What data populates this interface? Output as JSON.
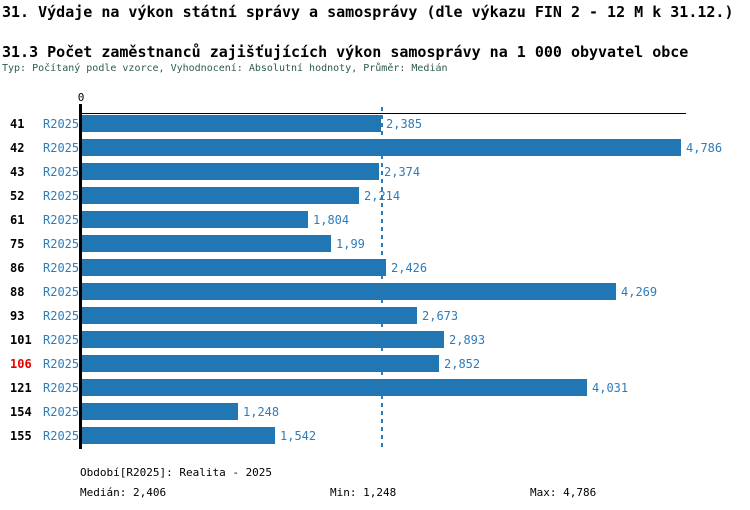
{
  "page": {
    "title": "31. Výdaje na výkon státní správy a samosprávy (dle výkazu FIN 2 - 12 M k 31.12.)",
    "subtitle": "31.3 Počet zaměstnanců zajišťujících výkon samosprávy na 1 000 obyvatel obce",
    "meta_line": "Typ: Počítaný podle vzorce, Vyhodnocení: Absolutní hodnoty, Průměr: Medián"
  },
  "chart_data": {
    "type": "bar",
    "orientation": "horizontal",
    "title": "31.3 Počet zaměstnanců zajišťujících výkon samosprávy na 1 000 obyvatel obce",
    "xlabel": "",
    "ylabel": "",
    "x_origin_label": "0",
    "xlim": [
      0,
      4.84
    ],
    "series_label": "R2025",
    "categories": [
      "41",
      "42",
      "43",
      "52",
      "61",
      "75",
      "86",
      "88",
      "93",
      "101",
      "106",
      "121",
      "154",
      "155"
    ],
    "values": [
      2.385,
      4.786,
      2.374,
      2.214,
      1.804,
      1.99,
      2.426,
      4.269,
      2.673,
      2.893,
      2.852,
      4.031,
      1.248,
      1.542
    ],
    "value_labels": [
      "2,385",
      "4,786",
      "2,374",
      "2,214",
      "1,804",
      "1,99",
      "2,426",
      "4,269",
      "2,673",
      "2,893",
      "2,852",
      "4,031",
      "1,248",
      "1,542"
    ],
    "highlighted_category": "106",
    "median_value": 2.406,
    "grid": false,
    "legend": "none",
    "colors": {
      "bar": "#2177B4",
      "blue_text": "#2E7CBA",
      "highlight_text": "#E60000",
      "axis": "#000000",
      "meta_text": "#2d5c4a"
    }
  },
  "footer": {
    "period_line": "Období[R2025]: Realita - 2025",
    "median_label": "Medián: 2,406",
    "min_label": "Min: 1,248",
    "max_label": "Max: 4,786"
  }
}
